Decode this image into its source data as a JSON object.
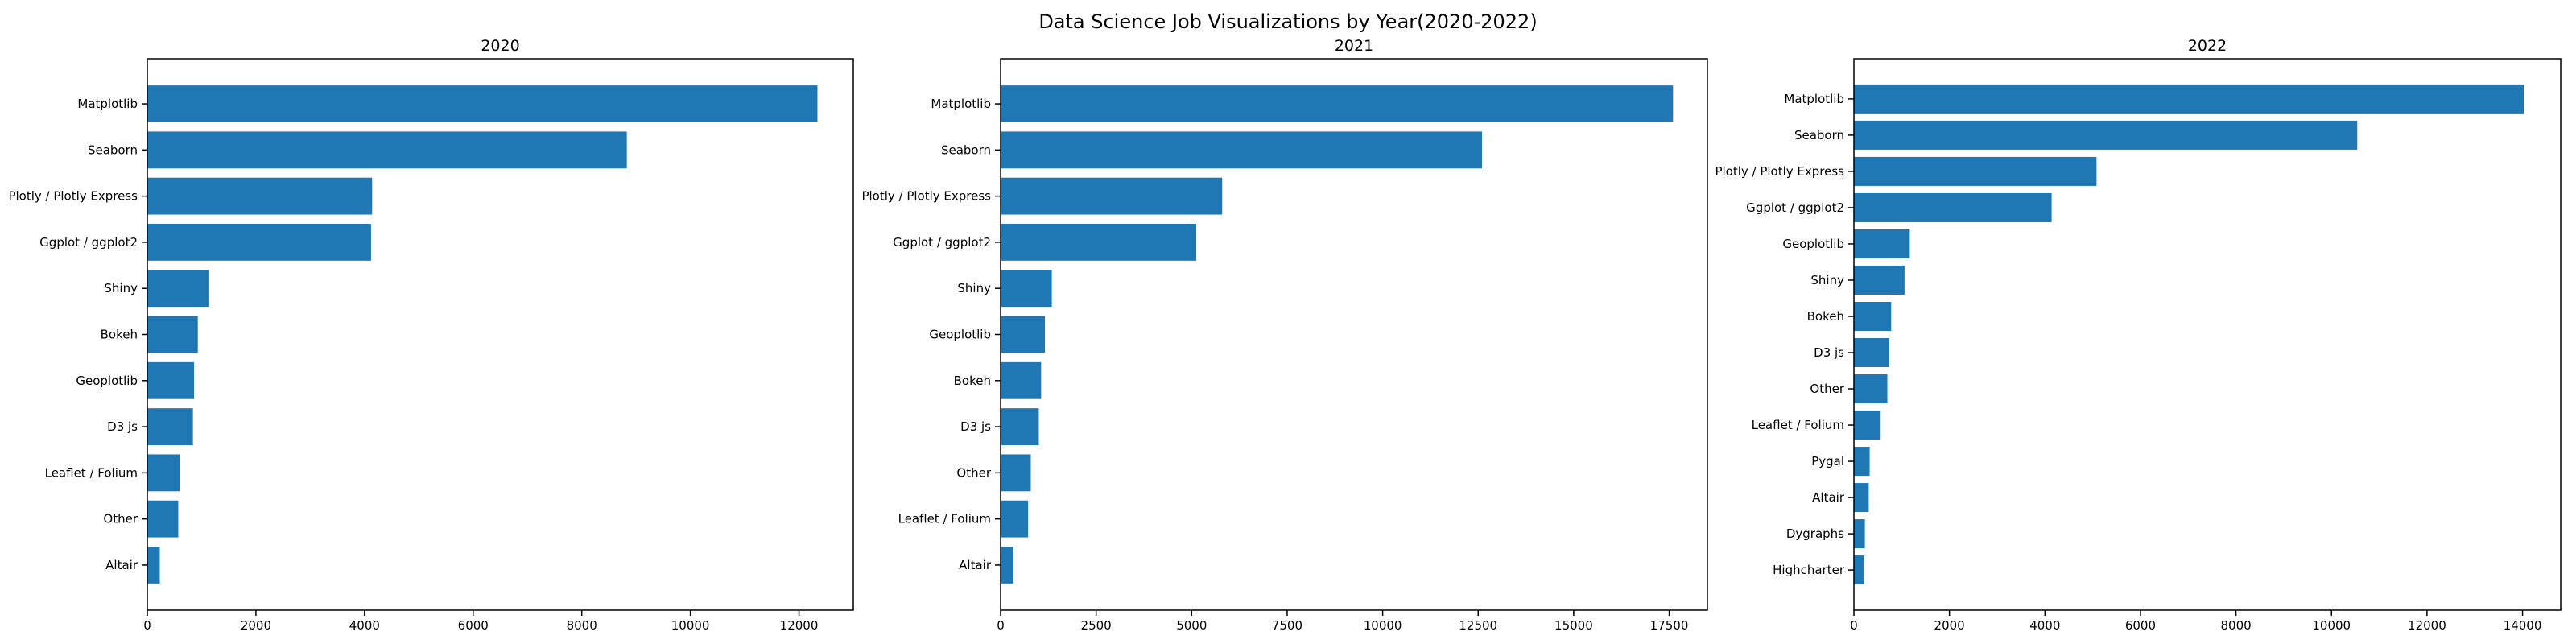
{
  "figure": {
    "title": "Data Science Job Visualizations by Year(2020-2022)"
  },
  "colors": {
    "bar": "#1f77b4",
    "axis": "#000000",
    "background": "#ffffff"
  },
  "chart_data": [
    {
      "type": "bar",
      "orientation": "horizontal",
      "title": "2020",
      "xlabel": "",
      "ylabel": "",
      "xlim": [
        0,
        13000
      ],
      "xticks": [
        0,
        2000,
        4000,
        6000,
        8000,
        10000,
        12000
      ],
      "grid": false,
      "categories": [
        "Matplotlib",
        "Seaborn",
        "Plotly / Plotly Express",
        "Ggplot / ggplot2",
        "Shiny",
        "Bokeh",
        "Geoplotlib",
        "D3 js",
        "Leaflet / Folium",
        "Other",
        "Altair"
      ],
      "values": [
        12340,
        8830,
        4140,
        4120,
        1140,
        930,
        860,
        840,
        600,
        570,
        230
      ]
    },
    {
      "type": "bar",
      "orientation": "horizontal",
      "title": "2021",
      "xlabel": "",
      "ylabel": "",
      "xlim": [
        0,
        18500
      ],
      "xticks": [
        0,
        2500,
        5000,
        7500,
        10000,
        12500,
        15000,
        17500
      ],
      "grid": false,
      "categories": [
        "Matplotlib",
        "Seaborn",
        "Plotly / Plotly Express",
        "Ggplot / ggplot2",
        "Shiny",
        "Geoplotlib",
        "Bokeh",
        "D3 js",
        "Other",
        "Leaflet / Folium",
        "Altair"
      ],
      "values": [
        17600,
        12600,
        5800,
        5120,
        1340,
        1160,
        1060,
        1000,
        790,
        720,
        330
      ]
    },
    {
      "type": "bar",
      "orientation": "horizontal",
      "title": "2022",
      "xlabel": "",
      "ylabel": "",
      "xlim": [
        0,
        14800
      ],
      "xticks": [
        0,
        2000,
        4000,
        6000,
        8000,
        10000,
        12000,
        14000
      ],
      "grid": false,
      "categories": [
        "Matplotlib",
        "Seaborn",
        "Plotly / Plotly Express",
        "Ggplot / ggplot2",
        "Geoplotlib",
        "Shiny",
        "Bokeh",
        "D3 js",
        "Other",
        "Leaflet / Folium",
        "Pygal",
        "Altair",
        "Dygraphs",
        "Highcharter"
      ],
      "values": [
        14030,
        10540,
        5080,
        4140,
        1170,
        1060,
        780,
        740,
        700,
        560,
        330,
        310,
        230,
        220
      ]
    }
  ]
}
